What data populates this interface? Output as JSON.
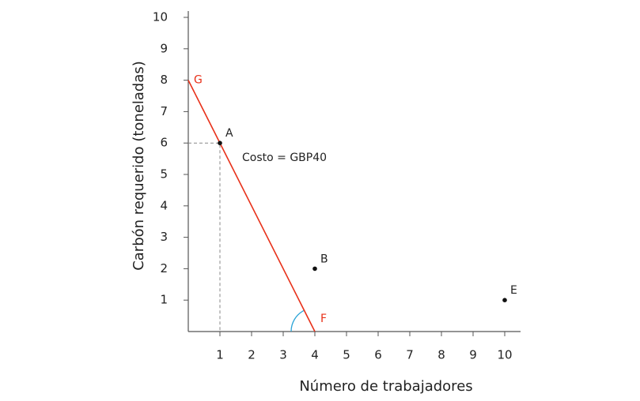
{
  "chart_data": {
    "type": "line",
    "xlabel": "Número de trabajadores",
    "ylabel": "Carbón requerido (toneladas)",
    "xlim": [
      0,
      10.5
    ],
    "ylim": [
      0,
      10
    ],
    "xticks": [
      1,
      2,
      3,
      4,
      5,
      6,
      7,
      8,
      9,
      10
    ],
    "yticks": [
      1,
      2,
      3,
      4,
      5,
      6,
      7,
      8,
      9,
      10
    ],
    "series": [
      {
        "x": [
          0,
          4
        ],
        "values": [
          8,
          0
        ],
        "color": "#e8311a",
        "point_labels": [
          "G",
          "F"
        ]
      }
    ],
    "points": [
      {
        "label": "A",
        "x": 1,
        "y": 6
      },
      {
        "label": "B",
        "x": 4,
        "y": 2
      },
      {
        "label": "E",
        "x": 10,
        "y": 1
      }
    ],
    "annotation": "Costo = GBP40"
  }
}
